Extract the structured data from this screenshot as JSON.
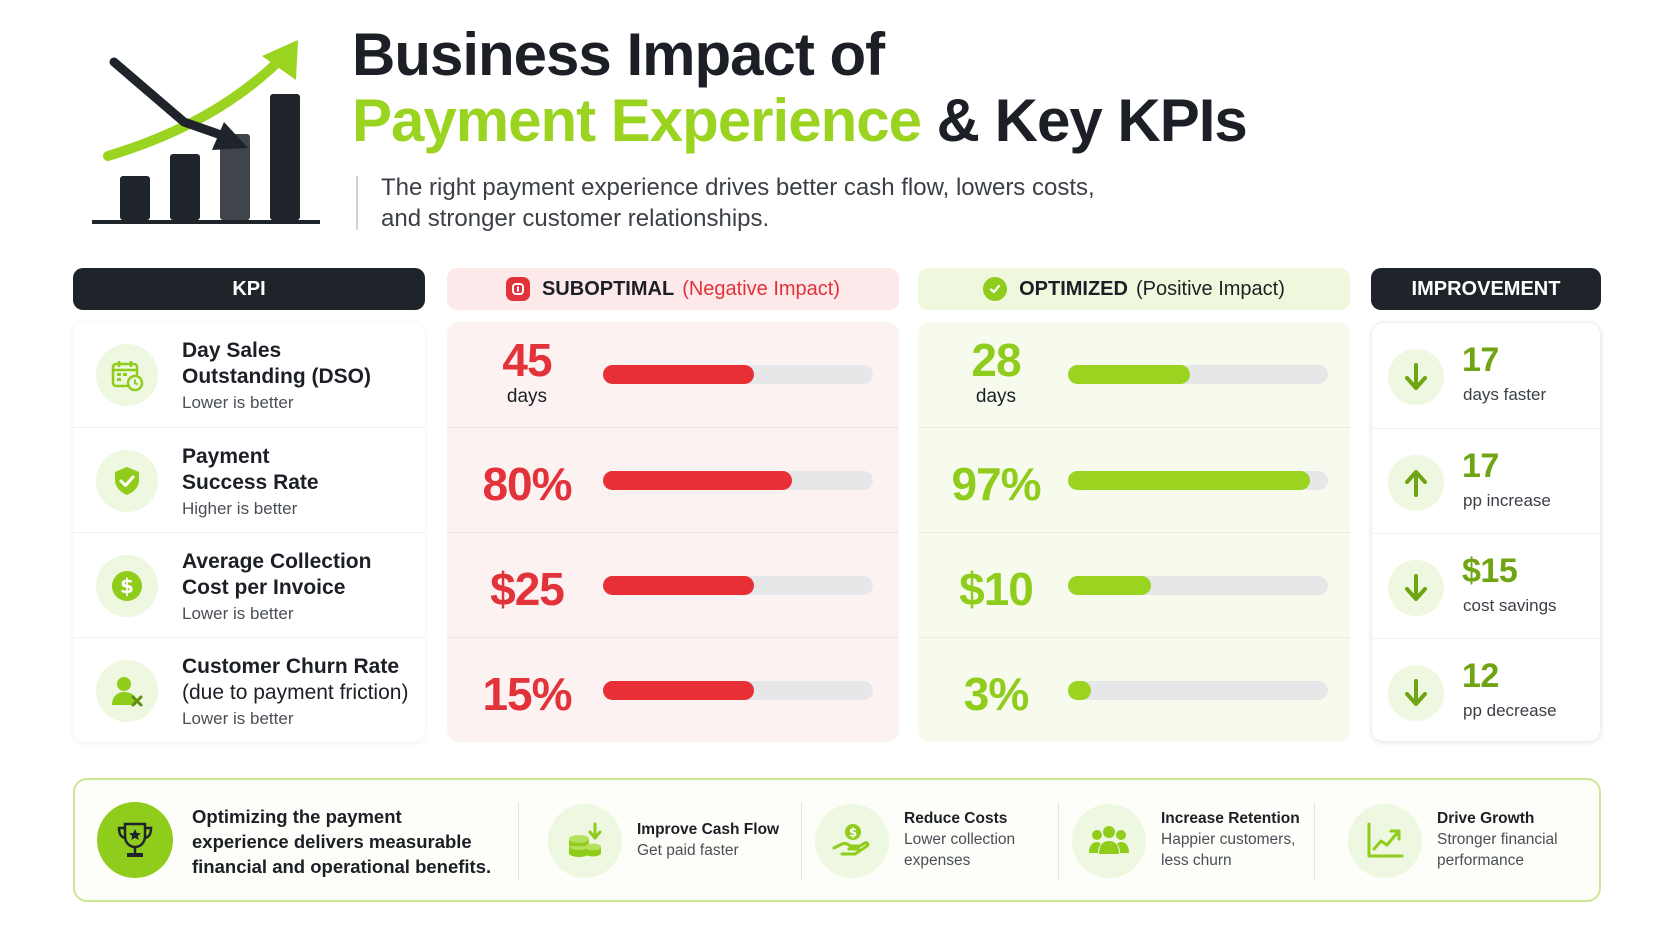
{
  "header": {
    "title_line1": "Business Impact of",
    "title_accent": "Payment Experience",
    "title_rest": "& Key KPIs",
    "subtitle_line1": "The right payment experience drives better cash flow, lowers costs,",
    "subtitle_line2": "and stronger customer relationships."
  },
  "columns": {
    "kpi": "KPI",
    "suboptimal": "SUBOPTIMAL",
    "suboptimal_note": "(Negative Impact)",
    "optimized": "OPTIMIZED",
    "optimized_note": "(Positive Impact)",
    "improvement": "IMPROVEMENT"
  },
  "colors": {
    "negative": "#e92f36",
    "positive": "#9bd321",
    "dark": "#1f242b"
  },
  "kpis": [
    {
      "icon": "calendar-clock-icon",
      "name_line1": "Day Sales",
      "name_line2": "Outstanding (DSO)",
      "direction": "Lower is better",
      "suboptimal_value": "45",
      "suboptimal_unit": "days",
      "suboptimal_bar": 0.56,
      "optimized_value": "28",
      "optimized_unit": "days",
      "optimized_bar": 0.47,
      "improvement_icon": "arrow-down-icon",
      "improvement_value": "17",
      "improvement_note": "days faster"
    },
    {
      "icon": "shield-check-icon",
      "name_line1": "Payment",
      "name_line2": "Success Rate",
      "direction": "Higher is better",
      "suboptimal_value": "80%",
      "suboptimal_unit": "",
      "suboptimal_bar": 0.7,
      "optimized_value": "97%",
      "optimized_unit": "",
      "optimized_bar": 0.93,
      "improvement_icon": "arrow-up-icon",
      "improvement_value": "17",
      "improvement_note": "pp increase"
    },
    {
      "icon": "dollar-icon",
      "name_line1": "Average Collection",
      "name_line2": "Cost per Invoice",
      "direction": "Lower is better",
      "suboptimal_value": "$25",
      "suboptimal_unit": "",
      "suboptimal_bar": 0.56,
      "optimized_value": "$10",
      "optimized_unit": "",
      "optimized_bar": 0.32,
      "improvement_icon": "arrow-down-icon",
      "improvement_value": "$15",
      "improvement_note": "cost savings"
    },
    {
      "icon": "user-remove-icon",
      "name_line1": "Customer Churn Rate",
      "name_line2": "(due to payment friction)",
      "direction": "Lower is better",
      "suboptimal_value": "15%",
      "suboptimal_unit": "",
      "suboptimal_bar": 0.56,
      "optimized_value": "3%",
      "optimized_unit": "",
      "optimized_bar": 0.09,
      "improvement_icon": "arrow-down-icon",
      "improvement_value": "12",
      "improvement_note": "pp decrease"
    }
  ],
  "footer": {
    "lead_line1": "Optimizing the payment",
    "lead_line2": "experience delivers measurable",
    "lead_line3": "financial and operational benefits.",
    "benefits": [
      {
        "icon": "coins-icon",
        "title": "Improve Cash Flow",
        "line1": "Get paid faster",
        "line2": ""
      },
      {
        "icon": "money-hand-icon",
        "title": "Reduce Costs",
        "line1": "Lower collection",
        "line2": "expenses"
      },
      {
        "icon": "people-icon",
        "title": "Increase Retention",
        "line1": "Happier customers,",
        "line2": "less churn"
      },
      {
        "icon": "growth-chart-icon",
        "title": "Drive Growth",
        "line1": "Stronger financial",
        "line2": "performance"
      }
    ]
  }
}
